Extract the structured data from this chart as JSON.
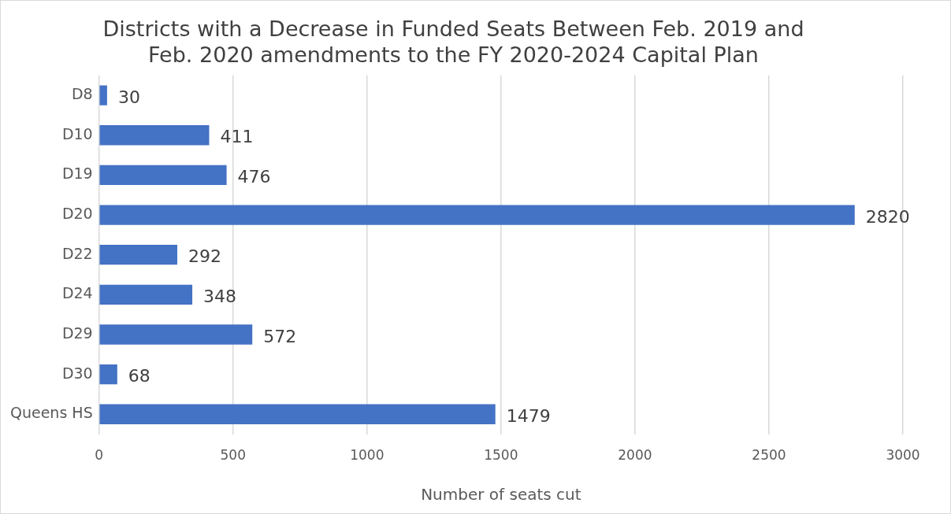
{
  "chart_data": {
    "type": "bar",
    "orientation": "horizontal",
    "title": [
      "Districts with a Decrease in Funded Seats Between Feb. 2019 and",
      "Feb. 2020 amendments to the FY 2020-2024 Capital Plan"
    ],
    "xlabel": "Number of seats cut",
    "categories": [
      "D8",
      "D10",
      "D19",
      "D20",
      "D22",
      "D24",
      "D29",
      "D30",
      "Queens HS"
    ],
    "values": [
      30,
      411,
      476,
      2820,
      292,
      348,
      572,
      68,
      1479
    ],
    "color": "#4472c4",
    "xlim": [
      0,
      3000
    ],
    "xticks": [
      0,
      500,
      1000,
      1500,
      2000,
      2500,
      3000
    ],
    "grid": "x",
    "legend": false,
    "data_labels": true
  }
}
